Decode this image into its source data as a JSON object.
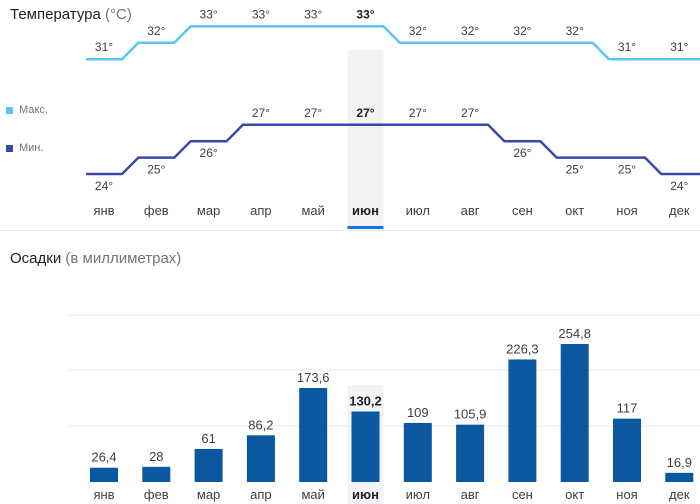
{
  "temperature": {
    "title": "Температура",
    "unit": "(°C)",
    "selected_index": 5,
    "legend": [
      {
        "label": "Макс.",
        "color": "#5bc6f5"
      },
      {
        "label": "Мин.",
        "color": "#3949ab"
      }
    ]
  },
  "precipitation": {
    "title": "Осадки",
    "unit": "(в миллиметрах)",
    "selected_index": 5,
    "bar_color": "#0b57a0"
  },
  "chart_data": [
    {
      "type": "line",
      "title": "Температура (°C)",
      "categories": [
        "янв",
        "фев",
        "мар",
        "апр",
        "май",
        "июн",
        "июл",
        "авг",
        "сен",
        "окт",
        "ноя",
        "дек"
      ],
      "series": [
        {
          "name": "Макс.",
          "values": [
            31,
            32,
            33,
            33,
            33,
            33,
            32,
            32,
            32,
            32,
            31,
            31
          ],
          "labels": [
            "31°",
            "32°",
            "33°",
            "33°",
            "33°",
            "33°",
            "32°",
            "32°",
            "32°",
            "32°",
            "31°",
            "31°"
          ],
          "color": "#5bc6f5"
        },
        {
          "name": "Мин.",
          "values": [
            24,
            25,
            26,
            27,
            27,
            27,
            27,
            27,
            26,
            25,
            25,
            24
          ],
          "labels": [
            "24°",
            "25°",
            "26°",
            "27°",
            "27°",
            "27°",
            "27°",
            "27°",
            "26°",
            "25°",
            "25°",
            "24°"
          ],
          "color": "#3949ab"
        }
      ],
      "selected": "июн"
    },
    {
      "type": "bar",
      "title": "Осадки (в миллиметрах)",
      "categories": [
        "янв",
        "фев",
        "мар",
        "апр",
        "май",
        "июн",
        "июл",
        "авг",
        "сен",
        "окт",
        "ноя",
        "дек"
      ],
      "values": [
        26.4,
        28,
        61,
        86.2,
        173.6,
        130.2,
        109,
        105.9,
        226.3,
        254.8,
        117,
        16.9
      ],
      "labels": [
        "26,4",
        "28",
        "61",
        "86,2",
        "173,6",
        "130,2",
        "109",
        "105,9",
        "226,3",
        "254,8",
        "117",
        "16,9"
      ],
      "grid": true,
      "selected": "июн"
    }
  ]
}
